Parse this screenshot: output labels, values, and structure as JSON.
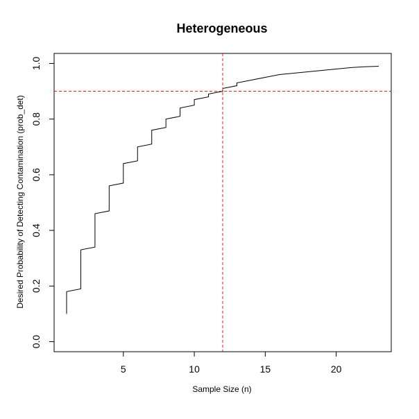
{
  "chart_data": {
    "type": "line",
    "title": "Heterogeneous",
    "xlabel": "Sample Size (n)",
    "ylabel": "Desired Probability of Detecting Contamination (prob_det)",
    "xlim": [
      0.12,
      23.88
    ],
    "ylim": [
      -0.036,
      1.036
    ],
    "x_ticks": [
      5,
      10,
      15,
      20
    ],
    "x_tick_labels": [
      "5",
      "10",
      "15",
      "20"
    ],
    "y_ticks": [
      0.0,
      0.2,
      0.4,
      0.6,
      0.8,
      1.0
    ],
    "y_tick_labels": [
      "0.0",
      "0.2",
      "0.4",
      "0.6",
      "0.8",
      "1.0"
    ],
    "grid": false,
    "series": [
      {
        "style": "step",
        "color": "#000000",
        "points": [
          [
            1,
            0.1
          ],
          [
            1,
            0.18
          ],
          [
            2,
            0.19
          ],
          [
            2,
            0.33
          ],
          [
            3,
            0.34
          ],
          [
            3,
            0.46
          ],
          [
            4,
            0.47
          ],
          [
            4,
            0.56
          ],
          [
            5,
            0.57
          ],
          [
            5,
            0.64
          ],
          [
            6,
            0.65
          ],
          [
            6,
            0.7
          ],
          [
            7,
            0.71
          ],
          [
            7,
            0.76
          ],
          [
            8,
            0.77
          ],
          [
            8,
            0.8
          ],
          [
            9,
            0.81
          ],
          [
            9,
            0.84
          ],
          [
            10,
            0.85
          ],
          [
            10,
            0.87
          ],
          [
            11,
            0.88
          ],
          [
            11,
            0.89
          ],
          [
            12,
            0.9
          ],
          [
            12,
            0.91
          ],
          [
            13,
            0.92
          ],
          [
            13,
            0.93
          ],
          [
            14,
            0.94
          ],
          [
            15,
            0.95
          ],
          [
            16,
            0.96
          ],
          [
            17,
            0.965
          ],
          [
            18,
            0.97
          ],
          [
            19,
            0.975
          ],
          [
            20,
            0.98
          ],
          [
            21,
            0.985
          ],
          [
            22,
            0.988
          ],
          [
            23,
            0.99
          ]
        ]
      }
    ],
    "reference_lines": [
      {
        "orientation": "vertical",
        "value": 12,
        "color": "#e41a1c",
        "style": "dashed"
      },
      {
        "orientation": "horizontal",
        "value": 0.9,
        "color": "#e41a1c",
        "style": "dashed"
      }
    ]
  }
}
